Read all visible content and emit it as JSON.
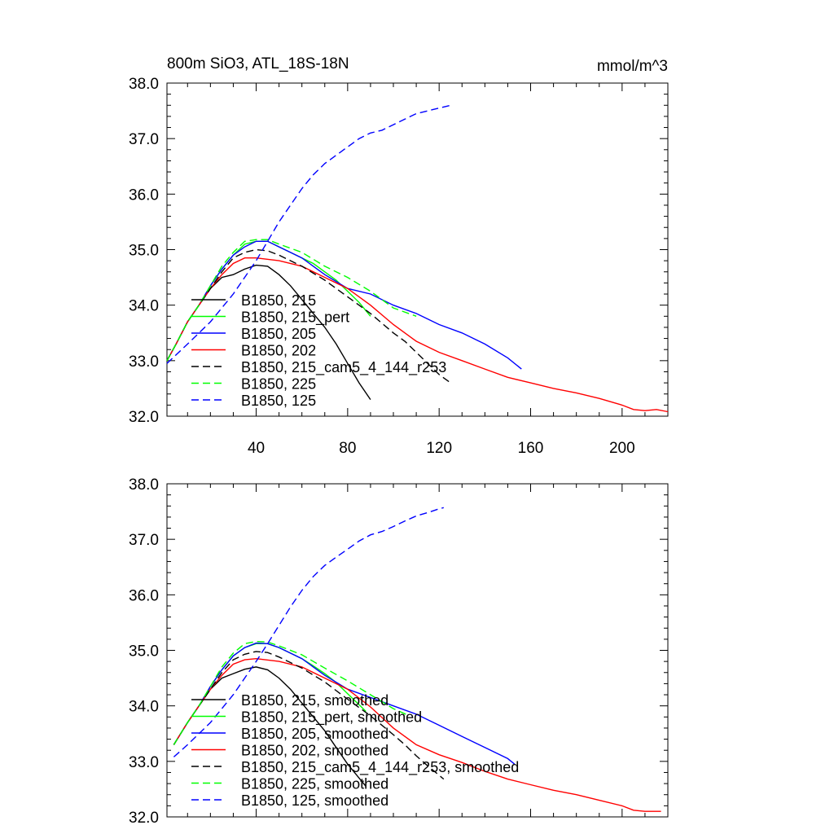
{
  "figure": {
    "title_left": "800m SiO3, ATL_18S-18N",
    "title_right": "mmol/m^3"
  },
  "chart_data": [
    {
      "type": "line",
      "title": "800m SiO3, ATL_18S-18N",
      "units": "mmol/m^3",
      "xlim": [
        1,
        220
      ],
      "ylim": [
        32.0,
        38.0
      ],
      "x_ticks": [
        40,
        80,
        120,
        160,
        200
      ],
      "x_tick_labels": [
        "40",
        "80",
        "120",
        "160",
        "200"
      ],
      "y_ticks": [
        32.0,
        33.0,
        34.0,
        35.0,
        36.0,
        37.0,
        38.0
      ],
      "y_tick_labels": [
        "32.0",
        "33.0",
        "34.0",
        "35.0",
        "36.0",
        "37.0",
        "38.0"
      ],
      "legend_position": "lower-left",
      "series": [
        {
          "name": "B1850, 215",
          "color": "#000000",
          "dash": "solid",
          "x": [
            1,
            5,
            10,
            15,
            20,
            25,
            30,
            35,
            40,
            45,
            50,
            55,
            60,
            65,
            70,
            75,
            80,
            85,
            90
          ],
          "y": [
            33.0,
            33.3,
            33.7,
            34.0,
            34.3,
            34.5,
            34.55,
            34.65,
            34.72,
            34.7,
            34.55,
            34.35,
            34.1,
            33.85,
            33.6,
            33.3,
            32.95,
            32.6,
            32.3
          ]
        },
        {
          "name": "B1850, 215_pert",
          "color": "#00ff00",
          "dash": "solid",
          "x": [
            1,
            5,
            10,
            15,
            20,
            25,
            30,
            35,
            40,
            45,
            50,
            55,
            60,
            65,
            70,
            75,
            80,
            85,
            90
          ],
          "y": [
            33.0,
            33.3,
            33.7,
            34.0,
            34.35,
            34.65,
            34.9,
            35.1,
            35.15,
            35.15,
            35.05,
            34.95,
            34.85,
            34.75,
            34.6,
            34.45,
            34.25,
            34.05,
            33.8
          ]
        },
        {
          "name": "B1850, 205",
          "color": "#0000ff",
          "dash": "solid",
          "x": [
            1,
            5,
            10,
            15,
            20,
            25,
            30,
            35,
            40,
            45,
            50,
            55,
            60,
            70,
            80,
            90,
            100,
            110,
            120,
            130,
            140,
            150,
            156
          ],
          "y": [
            33.0,
            33.3,
            33.7,
            34.0,
            34.35,
            34.65,
            34.9,
            35.05,
            35.15,
            35.15,
            35.05,
            34.95,
            34.85,
            34.55,
            34.3,
            34.2,
            34.0,
            33.85,
            33.65,
            33.5,
            33.3,
            33.05,
            32.85
          ]
        },
        {
          "name": "B1850, 202",
          "color": "#ff0000",
          "dash": "solid",
          "x": [
            1,
            5,
            10,
            15,
            20,
            25,
            30,
            35,
            40,
            50,
            60,
            70,
            80,
            90,
            100,
            110,
            120,
            130,
            140,
            150,
            160,
            170,
            180,
            190,
            200,
            205,
            210,
            215,
            220
          ],
          "y": [
            33.0,
            33.3,
            33.7,
            34.0,
            34.3,
            34.55,
            34.75,
            34.85,
            34.85,
            34.8,
            34.7,
            34.5,
            34.3,
            34.0,
            33.65,
            33.35,
            33.15,
            33.0,
            32.85,
            32.7,
            32.6,
            32.5,
            32.42,
            32.32,
            32.2,
            32.12,
            32.1,
            32.12,
            32.08
          ]
        },
        {
          "name": "B1850, 215_cam5_4_144_r253",
          "color": "#000000",
          "dash": "dashed",
          "x": [
            1,
            5,
            10,
            15,
            20,
            25,
            30,
            35,
            40,
            45,
            50,
            60,
            70,
            80,
            90,
            100,
            105,
            110,
            115,
            120,
            125
          ],
          "y": [
            33.0,
            33.3,
            33.7,
            34.0,
            34.3,
            34.6,
            34.85,
            34.95,
            35.0,
            34.98,
            34.9,
            34.7,
            34.45,
            34.15,
            33.85,
            33.5,
            33.35,
            33.15,
            32.95,
            32.75,
            32.6
          ]
        },
        {
          "name": "B1850, 225",
          "color": "#00ff00",
          "dash": "dashed",
          "x": [
            1,
            5,
            10,
            15,
            20,
            25,
            30,
            35,
            40,
            45,
            50,
            60,
            70,
            80,
            90,
            100,
            110
          ],
          "y": [
            33.0,
            33.3,
            33.7,
            34.0,
            34.35,
            34.7,
            34.95,
            35.15,
            35.18,
            35.18,
            35.1,
            34.95,
            34.7,
            34.5,
            34.25,
            33.95,
            33.8
          ]
        },
        {
          "name": "B1850, 125",
          "color": "#0000ff",
          "dash": "dashed",
          "x": [
            1,
            10,
            20,
            30,
            40,
            45,
            50,
            55,
            60,
            65,
            70,
            75,
            80,
            85,
            90,
            95,
            100,
            105,
            110,
            115,
            120,
            125
          ],
          "y": [
            32.95,
            33.3,
            33.7,
            34.2,
            34.8,
            35.15,
            35.5,
            35.8,
            36.1,
            36.35,
            36.55,
            36.7,
            36.85,
            37.0,
            37.1,
            37.15,
            37.25,
            37.35,
            37.45,
            37.5,
            37.55,
            37.6
          ]
        }
      ]
    },
    {
      "type": "line",
      "xlim": [
        1,
        220
      ],
      "ylim": [
        32.0,
        38.0
      ],
      "x_ticks": [
        40,
        80,
        120,
        160,
        200
      ],
      "y_ticks": [
        32.0,
        33.0,
        34.0,
        35.0,
        36.0,
        37.0,
        38.0
      ],
      "y_tick_labels": [
        "32.0",
        "33.0",
        "34.0",
        "35.0",
        "36.0",
        "37.0",
        "38.0"
      ],
      "legend_position": "lower-left",
      "series": [
        {
          "name": "B1850, 215, smoothed",
          "color": "#000000",
          "dash": "solid",
          "x": [
            4,
            10,
            15,
            20,
            25,
            30,
            35,
            40,
            45,
            50,
            55,
            60,
            65,
            70,
            75,
            80,
            85,
            88
          ],
          "y": [
            33.3,
            33.7,
            34.0,
            34.3,
            34.5,
            34.58,
            34.66,
            34.7,
            34.65,
            34.5,
            34.3,
            34.05,
            33.8,
            33.55,
            33.25,
            32.95,
            32.7,
            32.55
          ]
        },
        {
          "name": "B1850, 215_pert, smoothed",
          "color": "#00ff00",
          "dash": "solid",
          "x": [
            4,
            10,
            15,
            20,
            25,
            30,
            35,
            40,
            45,
            50,
            55,
            60,
            65,
            70,
            75,
            80,
            85,
            88
          ],
          "y": [
            33.3,
            33.7,
            34.0,
            34.35,
            34.65,
            34.9,
            35.05,
            35.12,
            35.12,
            35.05,
            34.95,
            34.85,
            34.72,
            34.58,
            34.42,
            34.22,
            34.02,
            33.9
          ]
        },
        {
          "name": "B1850, 205, smoothed",
          "color": "#0000ff",
          "dash": "solid",
          "x": [
            4,
            10,
            15,
            20,
            25,
            30,
            35,
            40,
            45,
            50,
            60,
            70,
            80,
            90,
            100,
            110,
            120,
            130,
            140,
            150,
            153
          ],
          "y": [
            33.3,
            33.7,
            34.0,
            34.35,
            34.65,
            34.9,
            35.05,
            35.13,
            35.12,
            35.05,
            34.85,
            34.55,
            34.3,
            34.15,
            34.0,
            33.85,
            33.65,
            33.45,
            33.25,
            33.05,
            32.95
          ]
        },
        {
          "name": "B1850, 202, smoothed",
          "color": "#ff0000",
          "dash": "solid",
          "x": [
            4,
            10,
            15,
            20,
            25,
            30,
            35,
            40,
            50,
            60,
            70,
            80,
            90,
            100,
            110,
            120,
            130,
            140,
            150,
            160,
            170,
            180,
            190,
            200,
            205,
            210,
            217
          ],
          "y": [
            33.3,
            33.7,
            34.0,
            34.3,
            34.55,
            34.75,
            34.83,
            34.85,
            34.8,
            34.7,
            34.5,
            34.3,
            33.98,
            33.6,
            33.3,
            33.12,
            32.98,
            32.82,
            32.68,
            32.58,
            32.48,
            32.4,
            32.3,
            32.2,
            32.12,
            32.1,
            32.1
          ]
        },
        {
          "name": "B1850, 215_cam5_4_144_r253, smoothed",
          "color": "#000000",
          "dash": "dashed",
          "x": [
            4,
            10,
            15,
            20,
            25,
            30,
            35,
            40,
            45,
            50,
            60,
            70,
            80,
            90,
            100,
            105,
            110,
            115,
            120,
            122
          ],
          "y": [
            33.3,
            33.7,
            34.0,
            34.3,
            34.6,
            34.83,
            34.93,
            34.98,
            34.96,
            34.88,
            34.68,
            34.43,
            34.12,
            33.82,
            33.48,
            33.3,
            33.1,
            32.92,
            32.75,
            32.68
          ]
        },
        {
          "name": "B1850, 225, smoothed",
          "color": "#00ff00",
          "dash": "dashed",
          "x": [
            4,
            10,
            15,
            20,
            25,
            30,
            35,
            40,
            45,
            50,
            60,
            70,
            80,
            90,
            100,
            107
          ],
          "y": [
            33.3,
            33.7,
            34.0,
            34.35,
            34.7,
            34.95,
            35.12,
            35.16,
            35.15,
            35.08,
            34.92,
            34.68,
            34.45,
            34.2,
            33.95,
            33.82
          ]
        },
        {
          "name": "B1850, 125, smoothed",
          "color": "#0000ff",
          "dash": "dashed",
          "x": [
            4,
            10,
            20,
            30,
            40,
            45,
            50,
            55,
            60,
            65,
            70,
            75,
            80,
            85,
            90,
            95,
            100,
            105,
            110,
            115,
            120,
            122
          ],
          "y": [
            33.08,
            33.3,
            33.7,
            34.2,
            34.8,
            35.12,
            35.45,
            35.78,
            36.08,
            36.33,
            36.53,
            36.68,
            36.82,
            36.97,
            37.08,
            37.14,
            37.23,
            37.33,
            37.42,
            37.48,
            37.55,
            37.57
          ]
        }
      ]
    }
  ]
}
